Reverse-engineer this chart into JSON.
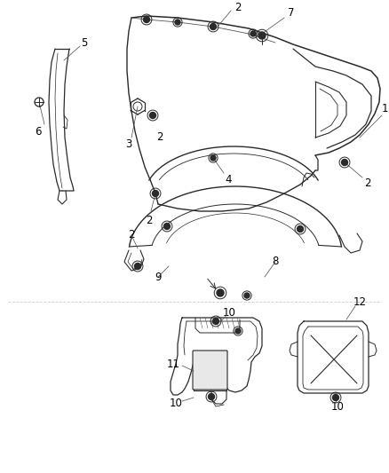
{
  "bg_color": "#ffffff",
  "line_color": "#2a2a2a",
  "label_color": "#000000",
  "fig_width": 4.38,
  "fig_height": 5.33,
  "dpi": 100,
  "label_fontsize": 8.5
}
